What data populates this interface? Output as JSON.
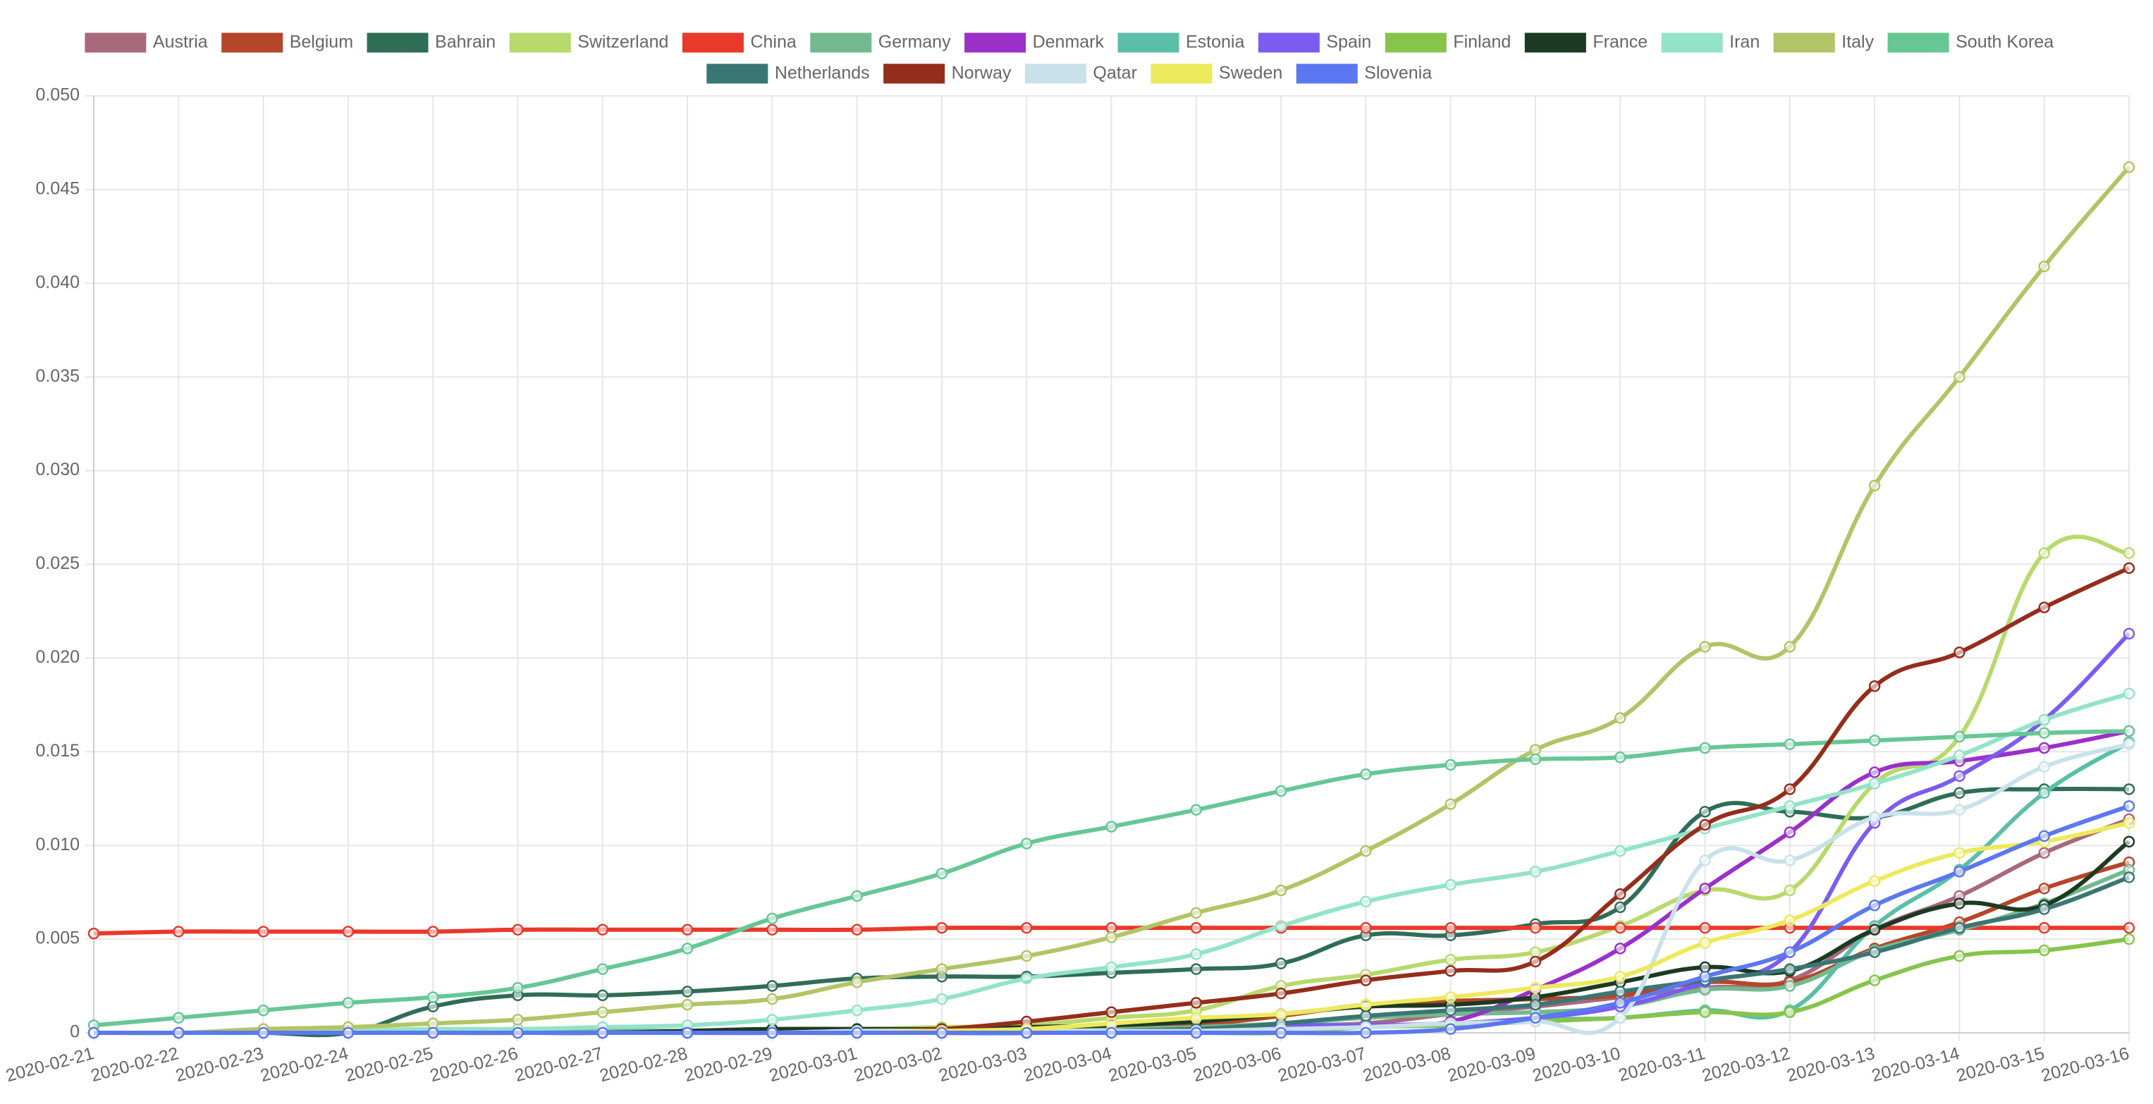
{
  "chart_data": {
    "type": "line",
    "x": [
      "2020-02-21",
      "2020-02-22",
      "2020-02-23",
      "2020-02-24",
      "2020-02-25",
      "2020-02-26",
      "2020-02-27",
      "2020-02-28",
      "2020-02-29",
      "2020-03-01",
      "2020-03-02",
      "2020-03-03",
      "2020-03-04",
      "2020-03-05",
      "2020-03-06",
      "2020-03-07",
      "2020-03-08",
      "2020-03-09",
      "2020-03-10",
      "2020-03-11",
      "2020-03-12",
      "2020-03-13",
      "2020-03-14",
      "2020-03-15",
      "2020-03-16"
    ],
    "ylim": [
      0,
      0.05
    ],
    "yticks": [
      0,
      0.005,
      {
        "value": 0.01,
        "label": "0.010"
      },
      0.015,
      {
        "value": 0.02,
        "label": "0.020"
      },
      0.025,
      {
        "value": 0.03,
        "label": "0.030"
      },
      0.035,
      {
        "value": 0.04,
        "label": "0.040"
      },
      0.045,
      {
        "value": 0.05,
        "label": "0.050"
      }
    ],
    "grid": true,
    "legend": "top",
    "series": [
      {
        "name": "Austria",
        "color": "#a8697c",
        "values": [
          0,
          0,
          0,
          0,
          0,
          0,
          0,
          0,
          0,
          0,
          0.0001,
          0.0002,
          0.0003,
          0.0003,
          0.0004,
          0.0005,
          0.001,
          0.0014,
          0.0019,
          0.0024,
          0.0028,
          0.0055,
          0.0073,
          0.0096,
          0.0114
        ]
      },
      {
        "name": "Belgium",
        "color": "#b4462a",
        "values": [
          0,
          0,
          0,
          0,
          0,
          0,
          0,
          0,
          0,
          0,
          0,
          0,
          0.0001,
          0.0004,
          0.0009,
          0.0015,
          0.0017,
          0.0018,
          0.002,
          0.0027,
          0.0027,
          0.0045,
          0.0059,
          0.0077,
          0.0091
        ]
      },
      {
        "name": "Bahrain",
        "color": "#2f6d57",
        "values": [
          0,
          0,
          0,
          0,
          0.0014,
          0.002,
          0.002,
          0.0022,
          0.0025,
          0.0029,
          0.003,
          0.003,
          0.0032,
          0.0034,
          0.0037,
          0.0052,
          0.0052,
          0.0058,
          0.0067,
          0.0118,
          0.0118,
          0.0115,
          0.0128,
          0.013,
          0.013
        ]
      },
      {
        "name": "Switzerland",
        "color": "#b8d96c",
        "values": [
          0,
          0,
          0,
          0,
          0,
          0,
          0.0001,
          0.0001,
          0.0001,
          0.0002,
          0.0003,
          0.0004,
          0.0008,
          0.0012,
          0.0025,
          0.0031,
          0.0039,
          0.0043,
          0.0057,
          0.0076,
          0.0076,
          0.0133,
          0.0158,
          0.0256,
          0.0256
        ]
      },
      {
        "name": "China",
        "color": "#e8392b",
        "values": [
          0.0053,
          0.0054,
          0.0054,
          0.0054,
          0.0054,
          0.0055,
          0.0055,
          0.0055,
          0.0055,
          0.0055,
          0.0056,
          0.0056,
          0.0056,
          0.0056,
          0.0056,
          0.0056,
          0.0056,
          0.0056,
          0.0056,
          0.0056,
          0.0056,
          0.0056,
          0.0056,
          0.0056,
          0.0056
        ]
      },
      {
        "name": "Germany",
        "color": "#72b98f",
        "values": [
          0,
          0,
          0,
          0,
          0,
          0,
          0.0001,
          0.0001,
          0.0001,
          0.0001,
          0.0002,
          0.0002,
          0.0002,
          0.0003,
          0.0005,
          0.0008,
          0.001,
          0.0011,
          0.0014,
          0.0023,
          0.0025,
          0.0044,
          0.0055,
          0.0069,
          0.0087
        ]
      },
      {
        "name": "Denmark",
        "color": "#9b30c9",
        "values": [
          0,
          0,
          0,
          0,
          0,
          0,
          0,
          0,
          0,
          0,
          0,
          0,
          0.0001,
          0.0002,
          0.0004,
          0.0004,
          0.0006,
          0.0023,
          0.0045,
          0.0077,
          0.0107,
          0.0139,
          0.0145,
          0.0152,
          0.0161
        ]
      },
      {
        "name": "Estonia",
        "color": "#5bbfa8",
        "values": [
          0,
          0,
          0,
          0,
          0,
          0,
          0,
          0,
          0,
          0,
          0,
          0,
          0.0001,
          0.0001,
          0.0004,
          0.0004,
          0.0004,
          0.0007,
          0.0008,
          0.0012,
          0.0012,
          0.0057,
          0.0087,
          0.0128,
          0.0155
        ]
      },
      {
        "name": "Spain",
        "color": "#7b5cf0",
        "values": [
          0,
          0,
          0,
          0,
          0,
          0,
          0,
          0,
          0,
          0,
          0,
          0,
          0.0001,
          0.0002,
          0.0004,
          0.0004,
          0.0005,
          0.0008,
          0.0014,
          0.0027,
          0.0043,
          0.0112,
          0.0137,
          0.0167,
          0.0213
        ]
      },
      {
        "name": "Finland",
        "color": "#86c44b",
        "values": [
          0,
          0,
          0,
          0,
          0,
          0,
          0,
          0,
          0,
          0,
          0,
          0,
          0,
          0,
          0,
          0.0003,
          0.0004,
          0.0006,
          0.0008,
          0.0011,
          0.0011,
          0.0028,
          0.0041,
          0.0044,
          0.005
        ]
      },
      {
        "name": "France",
        "color": "#1c3a22",
        "values": [
          0,
          0,
          0,
          0,
          0,
          0,
          0,
          0.0001,
          0.0002,
          0.0002,
          0.0002,
          0.0003,
          0.0004,
          0.0006,
          0.001,
          0.0014,
          0.0015,
          0.0019,
          0.0027,
          0.0035,
          0.0033,
          0.0055,
          0.0069,
          0.0068,
          0.0102
        ]
      },
      {
        "name": "Iran",
        "color": "#93e3c8",
        "values": [
          0,
          0,
          0,
          0.0001,
          0.0002,
          0.0002,
          0.0003,
          0.0004,
          0.0007,
          0.0012,
          0.0018,
          0.0029,
          0.0035,
          0.0042,
          0.0057,
          0.007,
          0.0079,
          0.0086,
          0.0097,
          0.0109,
          0.0121,
          0.0133,
          0.0148,
          0.0167,
          0.0181
        ]
      },
      {
        "name": "Italy",
        "color": "#b2c466",
        "values": [
          0,
          0,
          0.0002,
          0.0003,
          0.0005,
          0.0007,
          0.0011,
          0.0015,
          0.0018,
          0.0027,
          0.0034,
          0.0041,
          0.0051,
          0.0064,
          0.0076,
          0.0097,
          0.0122,
          0.0151,
          0.0168,
          0.0206,
          0.0206,
          0.0292,
          0.035,
          0.0409,
          0.0462
        ]
      },
      {
        "name": "South Korea",
        "color": "#66c795",
        "values": [
          0.0004,
          0.0008,
          0.0012,
          0.0016,
          0.0019,
          0.0024,
          0.0034,
          0.0045,
          0.0061,
          0.0073,
          0.0085,
          0.0101,
          0.011,
          0.0119,
          0.0129,
          0.0138,
          0.0143,
          0.0146,
          0.0147,
          0.0152,
          0.0154,
          0.0156,
          0.0158,
          0.016,
          0.0161
        ]
      },
      {
        "name": "Netherlands",
        "color": "#3a7674",
        "values": [
          0,
          0,
          0,
          0,
          0,
          0,
          0,
          0,
          0,
          0,
          0,
          0,
          0.0001,
          0.0002,
          0.0005,
          0.0009,
          0.0012,
          0.0015,
          0.0022,
          0.0028,
          0.0034,
          0.0043,
          0.0056,
          0.0066,
          0.0083
        ]
      },
      {
        "name": "Norway",
        "color": "#952d1b",
        "values": [
          0,
          0,
          0,
          0,
          0,
          0,
          0,
          0,
          0,
          0.0001,
          0.0002,
          0.0006,
          0.0011,
          0.0016,
          0.0021,
          0.0028,
          0.0033,
          0.0038,
          0.0074,
          0.0111,
          0.013,
          0.0185,
          0.0203,
          0.0227,
          0.0248
        ]
      },
      {
        "name": "Qatar",
        "color": "#c9e1ea",
        "values": [
          0,
          0,
          0,
          0,
          0,
          0,
          0,
          0,
          0,
          0.0001,
          0.0001,
          0.0001,
          0.0001,
          0.0001,
          0.0002,
          0.0003,
          0.0005,
          0.0006,
          0.0008,
          0.0092,
          0.0092,
          0.0115,
          0.0119,
          0.0142,
          0.0154
        ]
      },
      {
        "name": "Sweden",
        "color": "#ede95c",
        "values": [
          0,
          0,
          0,
          0,
          0,
          0,
          0,
          0,
          0,
          0,
          0.0001,
          0.0002,
          0.0005,
          0.0008,
          0.001,
          0.0015,
          0.0019,
          0.0024,
          0.003,
          0.0048,
          0.006,
          0.0081,
          0.0096,
          0.0102,
          0.0112
        ]
      },
      {
        "name": "Slovenia",
        "color": "#5b78f0",
        "values": [
          0,
          0,
          0,
          0,
          0,
          0,
          0,
          0,
          0,
          0,
          0,
          0,
          0,
          0,
          0,
          0,
          0.0002,
          0.0008,
          0.0016,
          0.003,
          0.0043,
          0.0068,
          0.0086,
          0.0105,
          0.0121
        ]
      }
    ]
  }
}
